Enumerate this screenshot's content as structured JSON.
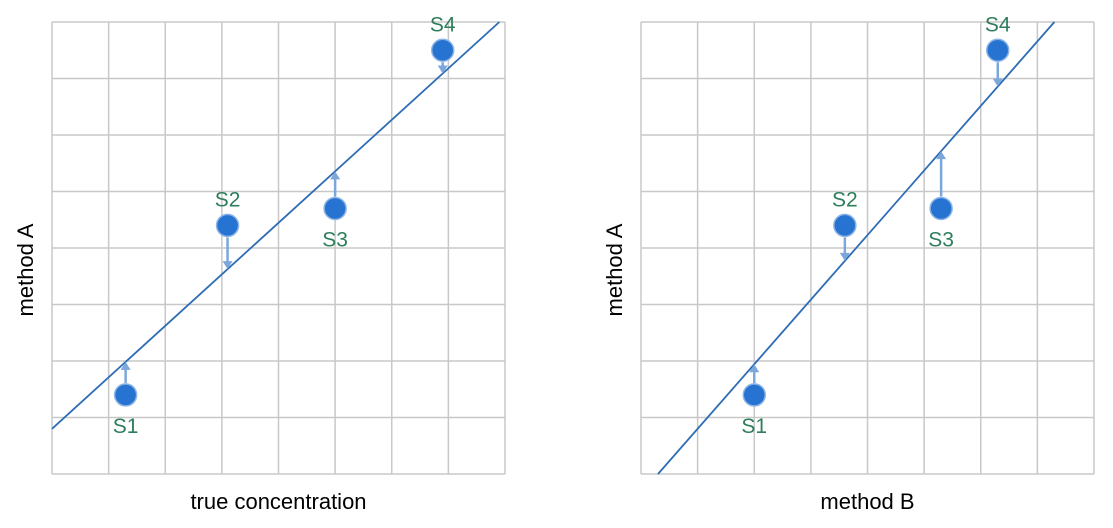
{
  "colors": {
    "grid": "#c8c8c8",
    "line": "#2e6db4",
    "point_fill": "#2673d1",
    "point_stroke": "#8cb4e6",
    "arrow": "#7ba7dc",
    "point_label": "#2e7d5b"
  },
  "chart_data": [
    {
      "type": "scatter",
      "title": "",
      "xlabel": "true concentration",
      "ylabel": "method A",
      "xlim": [
        0,
        8
      ],
      "ylim": [
        0,
        8
      ],
      "grid": true,
      "tick_labels": false,
      "points": [
        {
          "label": "S1",
          "x": 1.3,
          "y": 1.4,
          "label_pos": "below"
        },
        {
          "label": "S2",
          "x": 3.1,
          "y": 4.4,
          "label_pos": "above"
        },
        {
          "label": "S3",
          "x": 5.0,
          "y": 4.7,
          "label_pos": "below"
        },
        {
          "label": "S4",
          "x": 6.9,
          "y": 7.5,
          "label_pos": "above"
        }
      ],
      "fit_line": {
        "x": [
          0,
          7.9
        ],
        "y": [
          0.8,
          8.0
        ]
      }
    },
    {
      "type": "scatter",
      "title": "",
      "xlabel": "method B",
      "ylabel": "method A",
      "xlim": [
        0,
        8
      ],
      "ylim": [
        0,
        8
      ],
      "grid": true,
      "tick_labels": false,
      "points": [
        {
          "label": "S1",
          "x": 2.0,
          "y": 1.4,
          "label_pos": "below"
        },
        {
          "label": "S2",
          "x": 3.6,
          "y": 4.4,
          "label_pos": "above"
        },
        {
          "label": "S3",
          "x": 5.3,
          "y": 4.7,
          "label_pos": "below"
        },
        {
          "label": "S4",
          "x": 6.3,
          "y": 7.5,
          "label_pos": "above"
        }
      ],
      "fit_line": {
        "x": [
          0.3,
          7.3
        ],
        "y": [
          0.0,
          8.0
        ]
      }
    }
  ]
}
